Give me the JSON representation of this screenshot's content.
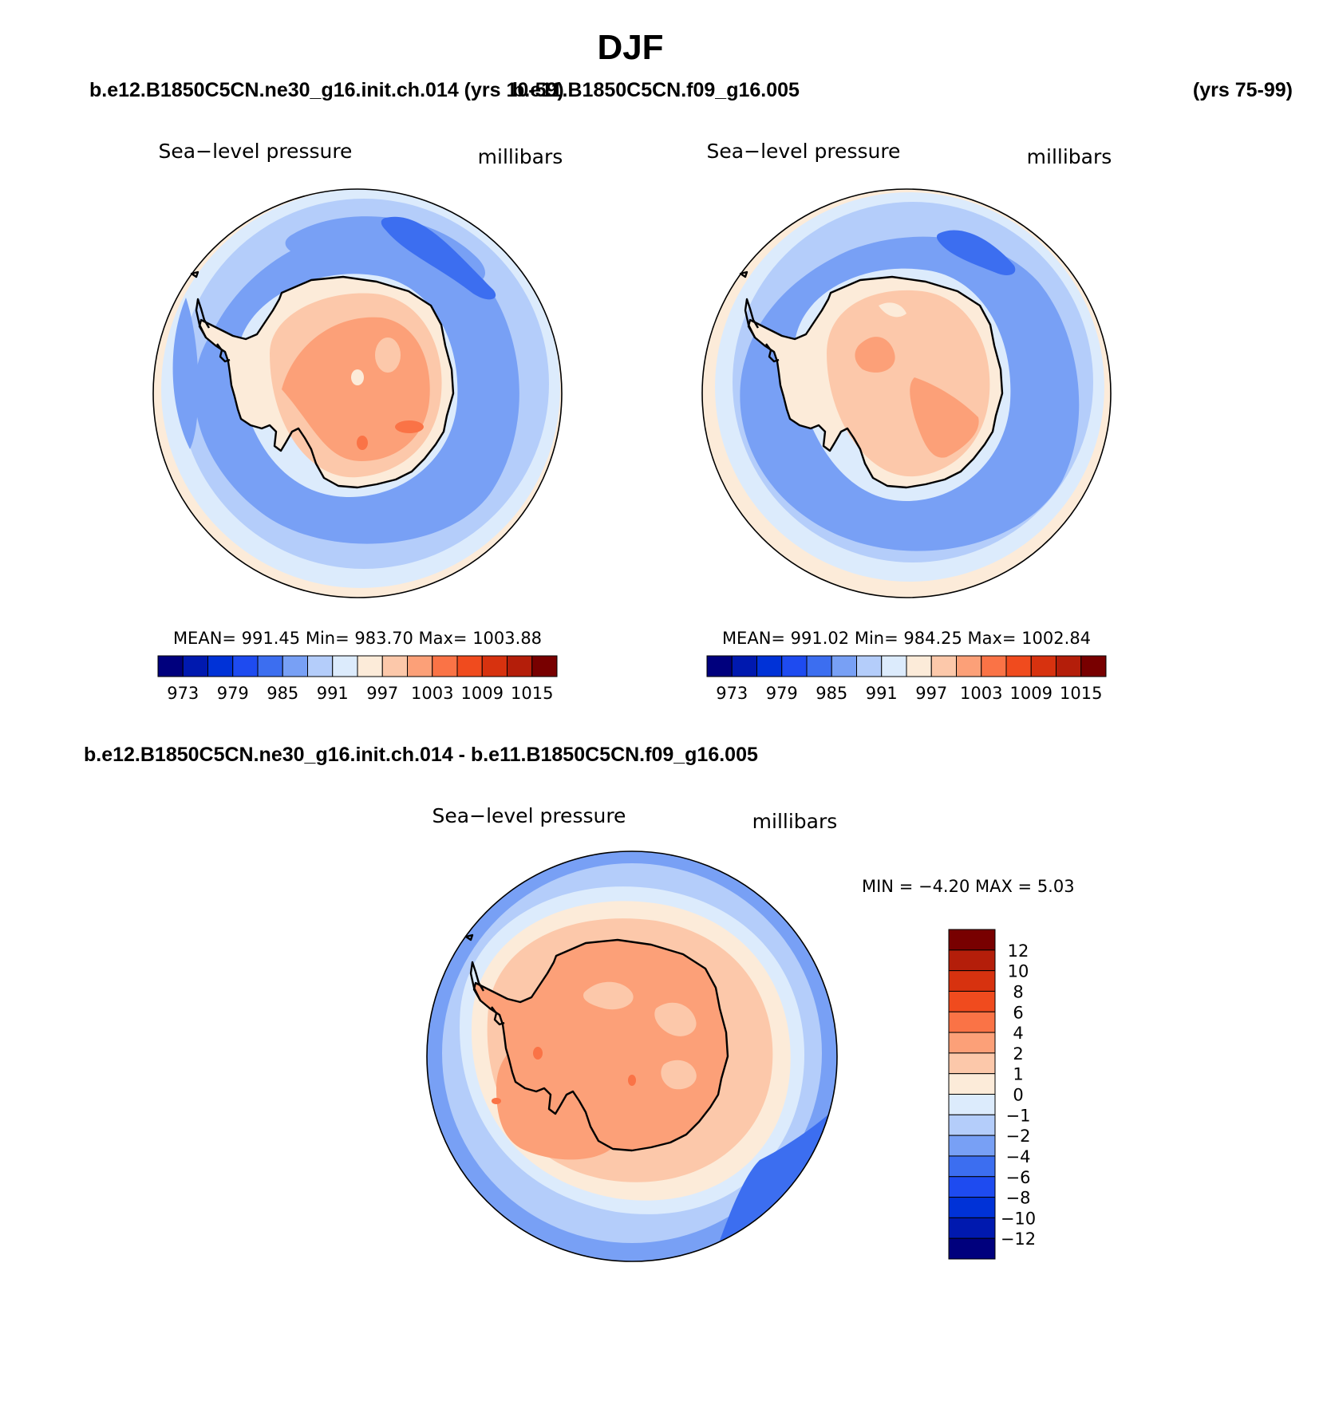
{
  "season": "DJF",
  "colors": {
    "seq": [
      "#00007d",
      "#0019af",
      "#0032d7",
      "#1e4bf0",
      "#3c6ef0",
      "#78a0f5",
      "#b4cdfa",
      "#dcebfc",
      "#fcebd9",
      "#fcc8aa",
      "#fca078",
      "#fa7346",
      "#f04b1e",
      "#d7320f",
      "#b41e0a",
      "#780000"
    ],
    "diff": [
      "#00007d",
      "#0019af",
      "#0032d7",
      "#1e4bf0",
      "#3c6ef0",
      "#78a0f5",
      "#b4cdfa",
      "#dcebfc",
      "#fcebd9",
      "#fcc8aa",
      "#fca078",
      "#fa7346",
      "#f04b1e",
      "#d7320f",
      "#b41e0a",
      "#780000"
    ]
  },
  "headers": {
    "case1": "b.e12.B1850C5CN.ne30_g16.init.ch.014 (yrs 10-59)",
    "case2": "b.e11.B1850C5CN.f09_g16.005",
    "case2_years": "(yrs 75-99)",
    "diff": "b.e12.B1850C5CN.ne30_g16.init.ch.014 - b.e11.B1850C5CN.f09_g16.005"
  },
  "panels": [
    {
      "variable": "Sea−level pressure",
      "units": "millibars",
      "stats": "MEAN=  991.45    Min=  983.70    Max=  1003.88"
    },
    {
      "variable": "Sea−level pressure",
      "units": "millibars",
      "stats": "MEAN=  991.02    Min=  984.25    Max=  1002.84"
    }
  ],
  "colorbar_labels": [
    "973",
    "979",
    "985",
    "991",
    "997",
    "1003",
    "1009",
    "1015"
  ],
  "diff_panel": {
    "variable": "Sea−level pressure",
    "units": "millibars",
    "stats": "MIN =   −4.20  MAX =     5.03",
    "colorbar_labels": [
      "12",
      "10",
      "8",
      "6",
      "4",
      "2",
      "1",
      "0",
      "−1",
      "−2",
      "−4",
      "−6",
      "−8",
      "−10",
      "−12"
    ]
  }
}
